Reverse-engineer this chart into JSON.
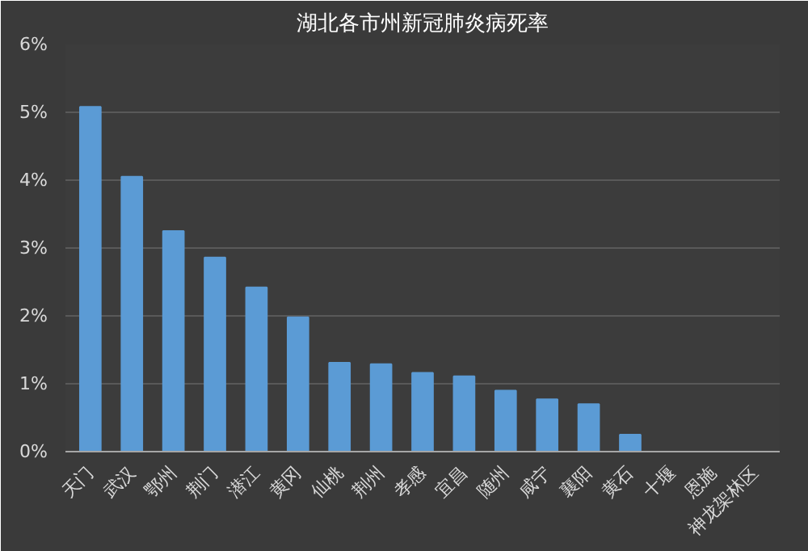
{
  "chart_data": {
    "type": "bar",
    "title": "湖北各市州新冠肺炎病死率",
    "categories": [
      "天门",
      "武汉",
      "鄂州",
      "荆门",
      "潜江",
      "黄冈",
      "仙桃",
      "荆州",
      "孝感",
      "宜昌",
      "随州",
      "咸宁",
      "襄阳",
      "黄石",
      "十堰",
      "恩施",
      "神龙架林区"
    ],
    "values": [
      5.08,
      4.05,
      3.25,
      2.86,
      2.42,
      1.98,
      1.31,
      1.29,
      1.16,
      1.11,
      0.9,
      0.77,
      0.7,
      0.25,
      0,
      0,
      0
    ],
    "color": "#5b9bd5",
    "ylim": [
      0,
      6
    ],
    "yticks": [
      {
        "value": 0,
        "label": "0%"
      },
      {
        "value": 1,
        "label": "1%"
      },
      {
        "value": 2,
        "label": "2%"
      },
      {
        "value": 3,
        "label": "3%"
      },
      {
        "value": 4,
        "label": "4%"
      },
      {
        "value": 5,
        "label": "5%"
      },
      {
        "value": 6,
        "label": "6%"
      }
    ],
    "grid": "y"
  }
}
